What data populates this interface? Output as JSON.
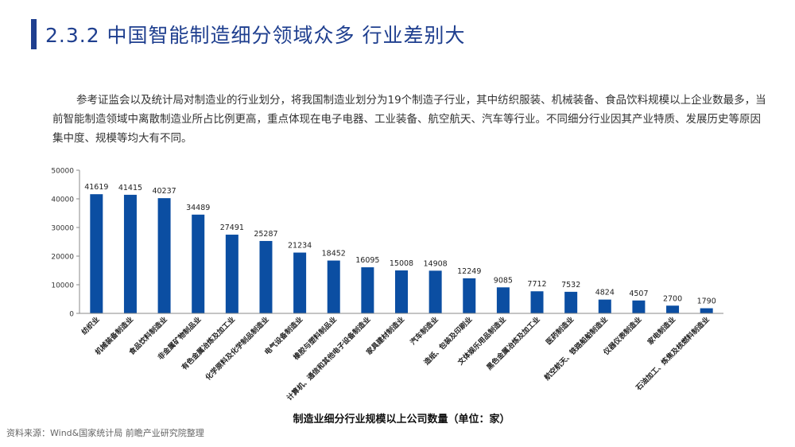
{
  "header": {
    "title": "2.3.2 中国智能制造细分领域众多 行业差别大"
  },
  "intro": "参考证监会以及统计局对制造业的行业划分，将我国制造业划分为19个制造子行业，其中纺织服装、机械装备、食品饮料规模以上企业数最多，当前智能制造领域中离散制造业所占比例更高，重点体现在电子电器、工业装备、航空航天、汽车等行业。不同细分行业因其产业特质、发展历史等原因集中度、规模等均大有不同。",
  "source": "资料来源：Wind&国家统计局 前瞻产业研究院整理",
  "colors": {
    "accent": "#1f3f8f",
    "bar": "#0b4ea2"
  },
  "chart_data": {
    "type": "bar",
    "xlabel": "制造业细分行业规模以上公司数量（单位：家）",
    "ylabel": "",
    "ylim": [
      0,
      50000
    ],
    "yticks": [
      "0",
      "10000",
      "20000",
      "30000",
      "40000",
      "50000"
    ],
    "grid": false,
    "categories": [
      "纺织业",
      "机械装备制造业",
      "食品饮料制造业",
      "非金属矿物制品业",
      "有色金属冶炼及加工业",
      "化学原料及化学制品制造业",
      "电气设备制造业",
      "橡胶与塑料制品业",
      "计算机、通信和其他电子设备制造业",
      "家具建材制造业",
      "汽车制造业",
      "造纸、包装及印刷业",
      "文体娱乐用品制造业",
      "黑色金属冶炼及加工业",
      "医药制造业",
      "航空航天、铁路船舶制造业",
      "仪器仪表制造业",
      "家电制造业",
      "石油加工、炼焦及核燃料制造业"
    ],
    "values": [
      41619,
      41415,
      40237,
      34489,
      27491,
      25287,
      21234,
      18452,
      16095,
      15008,
      14908,
      12249,
      9085,
      7712,
      7532,
      4824,
      4507,
      2700,
      1790
    ]
  }
}
